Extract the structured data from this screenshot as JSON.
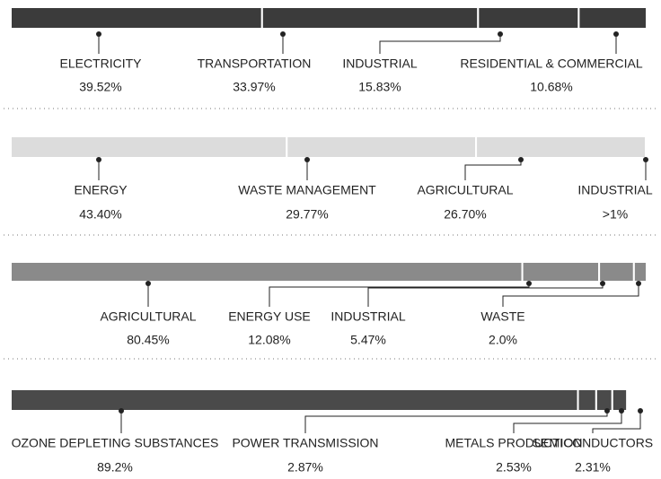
{
  "chart_data": [
    {
      "type": "bar",
      "categories": [
        "ELECTRICITY",
        "TRANSPORTATION",
        "INDUSTRIAL",
        "RESIDENTIAL & COMMERCIAL"
      ],
      "values": [
        39.52,
        33.97,
        15.83,
        10.68
      ],
      "value_labels": [
        "39.52%",
        "33.97%",
        "15.83%",
        "10.68%"
      ],
      "color": "#3b3b3b",
      "xlim": [
        0,
        100
      ]
    },
    {
      "type": "bar",
      "categories": [
        "ENERGY",
        "WASTE MANAGEMENT",
        "AGRICULTURAL",
        "INDUSTRIAL"
      ],
      "values": [
        43.4,
        29.77,
        26.7,
        0.13
      ],
      "value_labels": [
        "43.40%",
        "29.77%",
        "26.70%",
        ">1%"
      ],
      "color": "#dcdcdc",
      "xlim": [
        0,
        100
      ]
    },
    {
      "type": "bar",
      "categories": [
        "AGRICULTURAL",
        "ENERGY USE",
        "INDUSTRIAL",
        "WASTE"
      ],
      "values": [
        80.45,
        12.08,
        5.47,
        2.0
      ],
      "value_labels": [
        "80.45%",
        "12.08%",
        "5.47%",
        "2.0%"
      ],
      "color": "#8a8a8a",
      "xlim": [
        0,
        100
      ]
    },
    {
      "type": "bar",
      "categories": [
        "OZONE DEPLETING SUBSTANCES",
        "POWER TRANSMISSION",
        "METALS PRODUCTION",
        "SEMICONDUCTORS"
      ],
      "values": [
        89.2,
        2.87,
        2.53,
        2.31
      ],
      "value_labels": [
        "89.2%",
        "2.87%",
        "2.53%",
        "2.31%"
      ],
      "color": "#4a4a4a",
      "xlim": [
        0,
        100
      ]
    }
  ]
}
